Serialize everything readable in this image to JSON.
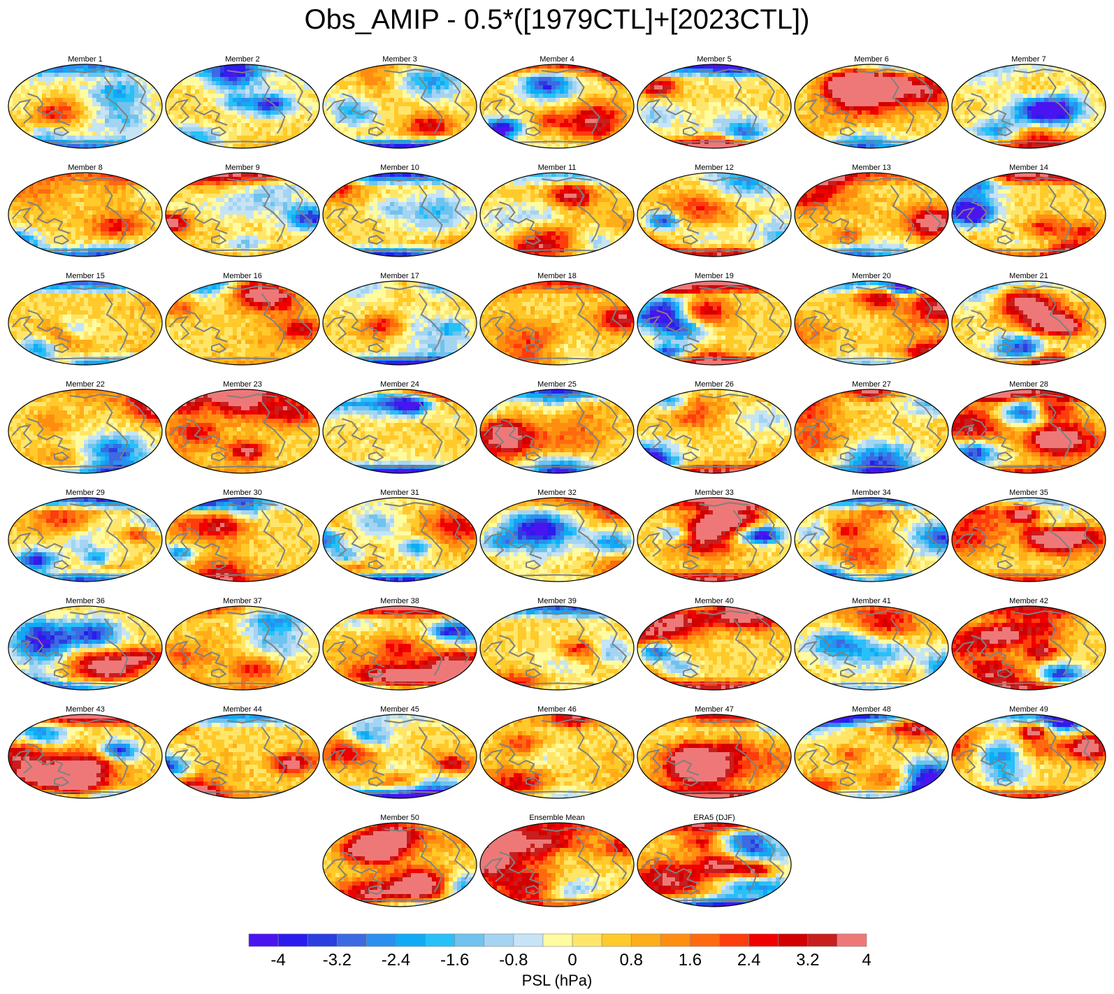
{
  "title": "Obs_AMIP - 0.5*([1979CTL]+[2023CTL])",
  "panels": [
    "Member 1",
    "Member 2",
    "Member 3",
    "Member 4",
    "Member 5",
    "Member 6",
    "Member 7",
    "Member 8",
    "Member 9",
    "Member 10",
    "Member 11",
    "Member 12",
    "Member 13",
    "Member 14",
    "Member 15",
    "Member 16",
    "Member 17",
    "Member 18",
    "Member 19",
    "Member 20",
    "Member 21",
    "Member 22",
    "Member 23",
    "Member 24",
    "Member 25",
    "Member 26",
    "Member 27",
    "Member 28",
    "Member 29",
    "Member 30",
    "Member 31",
    "Member 32",
    "Member 33",
    "Member 34",
    "Member 35",
    "Member 36",
    "Member 37",
    "Member 38",
    "Member 39",
    "Member 40",
    "Member 41",
    "Member 42",
    "Member 43",
    "Member 44",
    "Member 45",
    "Member 46",
    "Member 47",
    "Member 48",
    "Member 49",
    "Member 50",
    "Ensemble Mean",
    "ERA5 (DJF)"
  ],
  "colorbar": {
    "title": "PSL (hPa)",
    "tick_labels": [
      "-4",
      "-3.2",
      "-2.4",
      "-1.6",
      "-0.8",
      "0",
      "0.8",
      "1.6",
      "2.4",
      "3.2",
      "4"
    ],
    "colors": [
      "#4a14f0",
      "#2a1cee",
      "#2b3fe0",
      "#3d6ae2",
      "#2a8fee",
      "#10aaf5",
      "#28c0f8",
      "#6fc3ee",
      "#a4d4f2",
      "#c6e4f5",
      "#fffba0",
      "#ffe66a",
      "#ffca2a",
      "#ffad18",
      "#ff8e10",
      "#ff6a10",
      "#ff3c0c",
      "#f00000",
      "#d20000",
      "#c81e1e",
      "#ee7878"
    ]
  }
}
